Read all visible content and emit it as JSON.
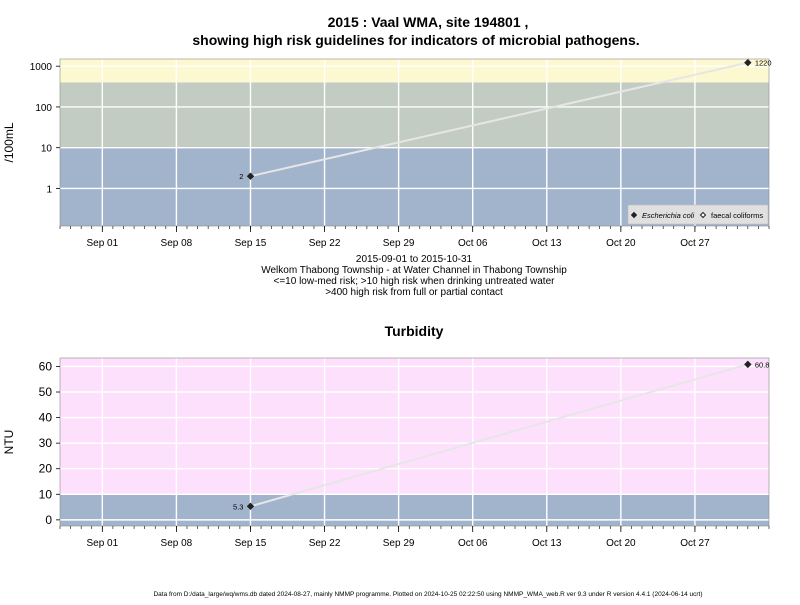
{
  "title_line1": "2015 : Vaal WMA, site 194801 ,",
  "title_line2": "showing high risk guidelines for indicators of microbial pathogens.",
  "info": {
    "date_range": "2015-09-01 to 2015-10-31",
    "site_desc": "Welkom Thabong Township - at Water Channel in Thabong Township",
    "risk_line1": "<=10 low-med risk; >10 high risk when drinking untreated water",
    "risk_line2": ">400 high risk from full or partial contact"
  },
  "footer": "Data from D:/data_large/wq/wms.db dated 2024-08-27, mainly NMMP programme. Plotted on 2024-10-25 02:22:50 using NMMP_WMA_web.R ver 9.3 under R version 4.4.1 (2024-06-14 ucrt)",
  "colors": {
    "band_low": "#a2b4cc",
    "band_mid": "#c3ccc3",
    "band_high": "#fcf8d0",
    "band_turb_low": "#a2b4cc",
    "band_turb_high": "#fde0fc",
    "line": "#e6e6e6",
    "grid": "#ffffff",
    "point": "#222222"
  },
  "chart_data": [
    {
      "type": "line",
      "title": "",
      "xlabel": "",
      "ylabel": "/100mL",
      "yscale": "log",
      "ylim": [
        0.12,
        1500
      ],
      "xlim": [
        "2015-08-28",
        "2015-11-03"
      ],
      "xticks": [
        "2015-09-01",
        "2015-09-08",
        "2015-09-15",
        "2015-09-22",
        "2015-09-29",
        "2015-10-06",
        "2015-10-13",
        "2015-10-20",
        "2015-10-27"
      ],
      "xtick_labels": [
        "Sep 01",
        "Sep 08",
        "Sep 15",
        "Sep 22",
        "Sep 29",
        "Oct 06",
        "Oct 13",
        "Oct 20",
        "Oct 27"
      ],
      "yticks": [
        1,
        10,
        100,
        1000
      ],
      "ytick_labels": [
        "1",
        "10",
        "100",
        "1000"
      ],
      "bands": [
        [
          0.12,
          10
        ],
        [
          10,
          400
        ],
        [
          400,
          1500
        ]
      ],
      "grid": true,
      "legend_position": "bottom-right",
      "series": [
        {
          "name": "Escherichia coli",
          "marker": "filled-diamond",
          "x": [
            "2015-09-15",
            "2015-11-01"
          ],
          "y": [
            2,
            1220
          ],
          "labels": [
            "2",
            "1220"
          ]
        },
        {
          "name": "faecal coliforms",
          "marker": "open-diamond",
          "x": [],
          "y": []
        }
      ]
    },
    {
      "type": "line",
      "title": "Turbidity",
      "xlabel": "",
      "ylabel": "NTU",
      "yscale": "linear",
      "ylim": [
        -2.4,
        63.3
      ],
      "xlim": [
        "2015-08-28",
        "2015-11-03"
      ],
      "xticks": [
        "2015-09-01",
        "2015-09-08",
        "2015-09-15",
        "2015-09-22",
        "2015-09-29",
        "2015-10-06",
        "2015-10-13",
        "2015-10-20",
        "2015-10-27"
      ],
      "xtick_labels": [
        "Sep 01",
        "Sep 08",
        "Sep 15",
        "Sep 22",
        "Sep 29",
        "Oct 06",
        "Oct 13",
        "Oct 20",
        "Oct 27"
      ],
      "yticks": [
        0,
        10,
        20,
        30,
        40,
        50,
        60
      ],
      "ytick_labels": [
        "0",
        "10",
        "20",
        "30",
        "40",
        "50",
        "60"
      ],
      "bands": [
        [
          -2.4,
          10
        ],
        [
          10,
          63.3
        ]
      ],
      "grid": true,
      "series": [
        {
          "x": [
            "2015-09-15",
            "2015-11-01"
          ],
          "y": [
            5.3,
            60.8
          ],
          "labels": [
            "5.3",
            "60.8"
          ]
        }
      ]
    }
  ]
}
